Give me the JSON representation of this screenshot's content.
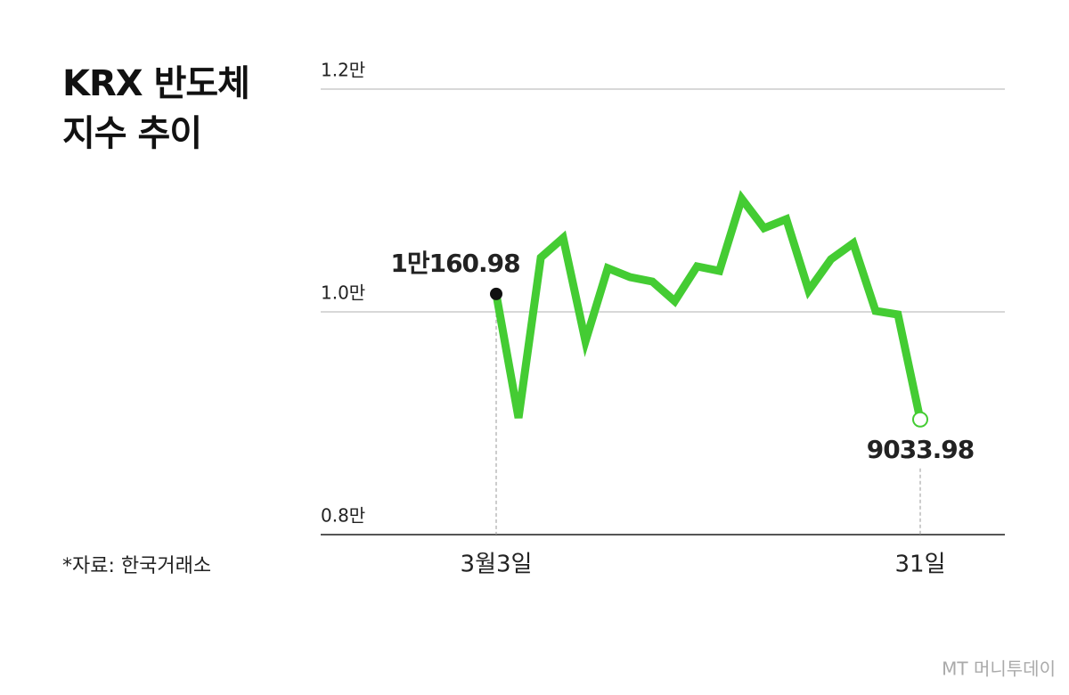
{
  "chart_data": {
    "type": "line",
    "title": "KRX 반도체 지수 추이",
    "source": "*자료: 한국거래소",
    "watermark": "MT 머니투데이",
    "categories": [
      "3월3일",
      null,
      null,
      null,
      null,
      null,
      null,
      null,
      null,
      null,
      null,
      null,
      null,
      null,
      null,
      null,
      null,
      null,
      null,
      "31일"
    ],
    "series": [
      {
        "color": "#44cc33",
        "values": [
          10160.98,
          9048,
          10488,
          10664,
          9736,
          10392,
          10312,
          10272,
          10096,
          10408,
          10368,
          11016,
          10752,
          10832,
          10192,
          10472,
          10616,
          10008,
          9976,
          9033.98
        ],
        "value_labels": [
          "1만160.98",
          null,
          null,
          null,
          null,
          null,
          null,
          null,
          null,
          null,
          null,
          null,
          null,
          null,
          null,
          null,
          null,
          null,
          null,
          "9033.98"
        ]
      }
    ],
    "ylim": [
      8000,
      12000
    ],
    "yticks": [
      {
        "value": 8000,
        "label": "0.8만"
      },
      {
        "value": 10000,
        "label": "1.0만"
      },
      {
        "value": 12000,
        "label": "1.2만"
      }
    ],
    "grid": true
  }
}
